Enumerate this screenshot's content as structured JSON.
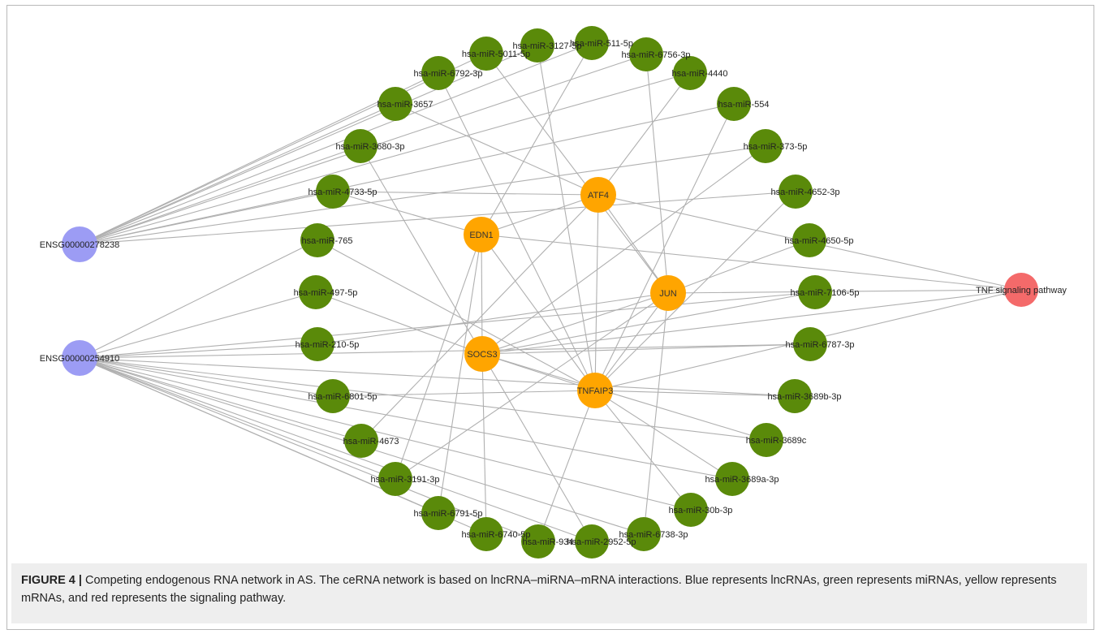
{
  "figure": {
    "caption_label": "FIGURE 4 |",
    "caption_text": " Competing endogenous RNA network in AS. The ceRNA network is based on lncRNA–miRNA–mRNA interactions. Blue represents lncRNAs, green represents miRNAs, yellow represents mRNAs, and red represents the signaling pathway."
  },
  "colors": {
    "lncrna": "#9c9cf4",
    "mirna": "#5a8a0a",
    "mrna": "#ffa500",
    "pathway": "#f46a6a",
    "edge": "#b0b0b0"
  },
  "network": {
    "lncrnas": [
      "ENSG00000278238",
      "ENSG00000254910"
    ],
    "pathway": "TNF signaling pathway",
    "mrnas": [
      "ATF4",
      "EDN1",
      "JUN",
      "SOCS3",
      "TNFAIP3"
    ],
    "mirnas": [
      "hsa-miR-3127-5p",
      "hsa-miR-511-5p",
      "hsa-miR-6756-3p",
      "hsa-miR-4440",
      "hsa-miR-554",
      "hsa-miR-373-5p",
      "hsa-miR-4652-3p",
      "hsa-miR-4650-5p",
      "hsa-miR-7106-5p",
      "hsa-miR-6787-3p",
      "hsa-miR-3689b-3p",
      "hsa-miR-3689c",
      "hsa-miR-3689a-3p",
      "hsa-miR-30b-3p",
      "hsa-miR-6738-3p",
      "hsa-miR-2952-5p",
      "hsa-miR-934",
      "hsa-miR-6740-5p",
      "hsa-miR-6791-5p",
      "hsa-miR-3191-3p",
      "hsa-miR-4673",
      "hsa-miR-6801-5p",
      "hsa-miR-210-5p",
      "hsa-miR-497-5p",
      "hsa-miR-765",
      "hsa-miR-4733-5p",
      "hsa-miR-3680-3p",
      "hsa-miR-3657",
      "hsa-miR-6792-3p",
      "hsa-miR-5011-5p"
    ],
    "lnc_to_mirna": [
      [
        "ENSG00000278238",
        "hsa-miR-3657"
      ],
      [
        "ENSG00000278238",
        "hsa-miR-6792-3p"
      ],
      [
        "ENSG00000278238",
        "hsa-miR-3680-3p"
      ],
      [
        "ENSG00000278238",
        "hsa-miR-4733-5p"
      ],
      [
        "ENSG00000278238",
        "hsa-miR-5011-5p"
      ],
      [
        "ENSG00000278238",
        "hsa-miR-3127-5p"
      ],
      [
        "ENSG00000278238",
        "hsa-miR-511-5p"
      ],
      [
        "ENSG00000278238",
        "hsa-miR-6756-3p"
      ],
      [
        "ENSG00000278238",
        "hsa-miR-4440"
      ],
      [
        "ENSG00000278238",
        "hsa-miR-554"
      ],
      [
        "ENSG00000278238",
        "hsa-miR-373-5p"
      ],
      [
        "ENSG00000278238",
        "hsa-miR-4652-3p"
      ],
      [
        "ENSG00000254910",
        "hsa-miR-765"
      ],
      [
        "ENSG00000254910",
        "hsa-miR-497-5p"
      ],
      [
        "ENSG00000254910",
        "hsa-miR-210-5p"
      ],
      [
        "ENSG00000254910",
        "hsa-miR-6801-5p"
      ],
      [
        "ENSG00000254910",
        "hsa-miR-4673"
      ],
      [
        "ENSG00000254910",
        "hsa-miR-3191-3p"
      ],
      [
        "ENSG00000254910",
        "hsa-miR-6791-5p"
      ],
      [
        "ENSG00000254910",
        "hsa-miR-6740-5p"
      ],
      [
        "ENSG00000254910",
        "hsa-miR-934"
      ],
      [
        "ENSG00000254910",
        "hsa-miR-2952-5p"
      ],
      [
        "ENSG00000254910",
        "hsa-miR-6738-3p"
      ],
      [
        "ENSG00000254910",
        "hsa-miR-30b-3p"
      ],
      [
        "ENSG00000254910",
        "hsa-miR-3689a-3p"
      ],
      [
        "ENSG00000254910",
        "hsa-miR-3689c"
      ],
      [
        "ENSG00000254910",
        "hsa-miR-3689b-3p"
      ],
      [
        "ENSG00000254910",
        "hsa-miR-6787-3p"
      ],
      [
        "ENSG00000254910",
        "hsa-miR-7106-5p"
      ]
    ],
    "mirna_to_mrna": [
      [
        "hsa-miR-4733-5p",
        "EDN1"
      ],
      [
        "hsa-miR-765",
        "TNFAIP3"
      ],
      [
        "hsa-miR-5011-5p",
        "JUN"
      ],
      [
        "hsa-miR-3127-5p",
        "TNFAIP3"
      ],
      [
        "hsa-miR-511-5p",
        "EDN1"
      ],
      [
        "hsa-miR-6756-3p",
        "JUN"
      ],
      [
        "hsa-miR-4440",
        "ATF4"
      ],
      [
        "hsa-miR-554",
        "TNFAIP3"
      ],
      [
        "hsa-miR-373-5p",
        "SOCS3"
      ],
      [
        "hsa-miR-4652-3p",
        "TNFAIP3"
      ],
      [
        "hsa-miR-4650-5p",
        "JUN"
      ],
      [
        "hsa-miR-7106-5p",
        "SOCS3"
      ],
      [
        "hsa-miR-6787-3p",
        "SOCS3"
      ],
      [
        "hsa-miR-3689b-3p",
        "TNFAIP3"
      ],
      [
        "hsa-miR-3689c",
        "SOCS3"
      ],
      [
        "hsa-miR-3689a-3p",
        "TNFAIP3"
      ],
      [
        "hsa-miR-30b-3p",
        "TNFAIP3"
      ],
      [
        "hsa-miR-6738-3p",
        "JUN"
      ],
      [
        "hsa-miR-2952-5p",
        "SOCS3"
      ],
      [
        "hsa-miR-934",
        "TNFAIP3"
      ],
      [
        "hsa-miR-6740-5p",
        "SOCS3"
      ],
      [
        "hsa-miR-6791-5p",
        "EDN1"
      ],
      [
        "hsa-miR-3191-3p",
        "EDN1"
      ],
      [
        "hsa-miR-4673",
        "ATF4"
      ],
      [
        "hsa-miR-6801-5p",
        "TNFAIP3"
      ],
      [
        "hsa-miR-210-5p",
        "JUN"
      ],
      [
        "hsa-miR-497-5p",
        "SOCS3"
      ],
      [
        "hsa-miR-3680-3p",
        "SOCS3"
      ],
      [
        "hsa-miR-3657",
        "ATF4"
      ],
      [
        "hsa-miR-6792-3p",
        "TNFAIP3"
      ],
      [
        "hsa-miR-4733-5p",
        "ATF4"
      ],
      [
        "hsa-miR-3191-3p",
        "JUN"
      ]
    ],
    "mrna_to_pathway": [
      [
        "ATF4",
        "TNF signaling pathway"
      ],
      [
        "EDN1",
        "TNF signaling pathway"
      ],
      [
        "JUN",
        "TNF signaling pathway"
      ],
      [
        "SOCS3",
        "TNF signaling pathway"
      ],
      [
        "TNFAIP3",
        "TNF signaling pathway"
      ]
    ],
    "mrna_to_mrna": [
      [
        "EDN1",
        "ATF4"
      ],
      [
        "EDN1",
        "SOCS3"
      ],
      [
        "ATF4",
        "JUN"
      ],
      [
        "ATF4",
        "TNFAIP3"
      ],
      [
        "JUN",
        "SOCS3"
      ],
      [
        "JUN",
        "TNFAIP3"
      ],
      [
        "SOCS3",
        "TNFAIP3"
      ],
      [
        "EDN1",
        "TNFAIP3"
      ]
    ]
  }
}
